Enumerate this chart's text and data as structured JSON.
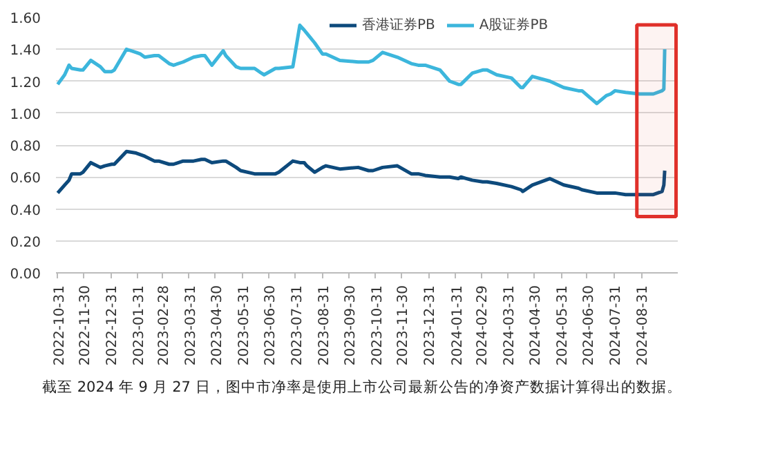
{
  "chart_data": {
    "type": "line",
    "x": [
      "2022-10-31",
      "2022-11-08",
      "2022-11-13",
      "2022-11-16",
      "2022-11-26",
      "2022-11-29",
      "2022-12-08",
      "2022-12-19",
      "2022-12-24",
      "2023-01-01",
      "2023-01-04",
      "2023-01-18",
      "2023-01-29",
      "2023-02-03",
      "2023-02-08",
      "2023-02-19",
      "2023-02-24",
      "2023-03-08",
      "2023-03-13",
      "2023-03-24",
      "2023-04-05",
      "2023-04-14",
      "2023-04-18",
      "2023-04-26",
      "2023-05-09",
      "2023-05-12",
      "2023-05-24",
      "2023-05-29",
      "2023-06-14",
      "2023-06-22",
      "2023-06-25",
      "2023-07-08",
      "2023-07-12",
      "2023-07-28",
      "2023-08-05",
      "2023-08-10",
      "2023-08-13",
      "2023-08-22",
      "2023-08-31",
      "2023-09-04",
      "2023-09-20",
      "2023-10-11",
      "2023-10-23",
      "2023-10-28",
      "2023-11-08",
      "2023-11-25",
      "2023-12-11",
      "2023-12-19",
      "2023-12-27",
      "2024-01-13",
      "2024-01-24",
      "2024-02-03",
      "2024-02-06",
      "2024-02-19",
      "2024-03-02",
      "2024-03-07",
      "2024-03-18",
      "2024-04-04",
      "2024-04-15",
      "2024-04-17",
      "2024-04-28",
      "2024-05-18",
      "2024-06-03",
      "2024-06-20",
      "2024-06-24",
      "2024-07-11",
      "2024-07-22",
      "2024-07-27",
      "2024-08-01",
      "2024-08-13",
      "2024-08-29",
      "2024-09-14",
      "2024-09-24",
      "2024-09-26",
      "2024-09-27"
    ],
    "series": [
      {
        "name": "香港证券PB",
        "color": "#0d4a7c",
        "values": [
          0.5,
          0.55,
          0.58,
          0.62,
          0.62,
          0.63,
          0.69,
          0.66,
          0.67,
          0.68,
          0.68,
          0.76,
          0.75,
          0.74,
          0.73,
          0.7,
          0.7,
          0.68,
          0.68,
          0.7,
          0.7,
          0.71,
          0.71,
          0.69,
          0.7,
          0.7,
          0.66,
          0.64,
          0.62,
          0.62,
          0.62,
          0.62,
          0.63,
          0.7,
          0.69,
          0.69,
          0.67,
          0.63,
          0.66,
          0.67,
          0.65,
          0.66,
          0.64,
          0.64,
          0.66,
          0.67,
          0.62,
          0.62,
          0.61,
          0.6,
          0.6,
          0.59,
          0.6,
          0.58,
          0.57,
          0.57,
          0.56,
          0.54,
          0.52,
          0.51,
          0.55,
          0.59,
          0.55,
          0.53,
          0.52,
          0.5,
          0.5,
          0.5,
          0.5,
          0.49,
          0.49,
          0.49,
          0.51,
          0.55,
          0.64
        ]
      },
      {
        "name": "A股证券PB",
        "color": "#3cb6dc",
        "values": [
          1.18,
          1.24,
          1.3,
          1.28,
          1.27,
          1.27,
          1.33,
          1.29,
          1.26,
          1.26,
          1.27,
          1.4,
          1.38,
          1.37,
          1.35,
          1.36,
          1.36,
          1.31,
          1.3,
          1.32,
          1.35,
          1.36,
          1.36,
          1.3,
          1.39,
          1.36,
          1.29,
          1.28,
          1.28,
          1.25,
          1.24,
          1.28,
          1.28,
          1.29,
          1.55,
          1.52,
          1.5,
          1.44,
          1.37,
          1.37,
          1.33,
          1.32,
          1.32,
          1.33,
          1.38,
          1.35,
          1.31,
          1.3,
          1.3,
          1.27,
          1.2,
          1.18,
          1.18,
          1.25,
          1.27,
          1.27,
          1.24,
          1.22,
          1.16,
          1.16,
          1.23,
          1.2,
          1.16,
          1.14,
          1.14,
          1.06,
          1.11,
          1.12,
          1.14,
          1.13,
          1.12,
          1.12,
          1.14,
          1.15,
          1.4
        ]
      }
    ],
    "xlim": [
      "2022-10-29",
      "2024-10-12"
    ],
    "xticks": [
      "2022-10-31",
      "2022-11-30",
      "2022-12-31",
      "2023-01-31",
      "2023-02-28",
      "2023-03-31",
      "2023-04-30",
      "2023-05-31",
      "2023-06-30",
      "2023-07-31",
      "2023-08-31",
      "2023-09-30",
      "2023-10-31",
      "2023-11-30",
      "2023-12-31",
      "2024-01-31",
      "2024-02-29",
      "2024-03-31",
      "2024-04-30",
      "2024-05-31",
      "2024-06-30",
      "2024-07-31",
      "2024-08-31"
    ],
    "ylim": [
      0,
      1.6
    ],
    "yticks": [
      {
        "value": 0,
        "label": "0.00"
      },
      {
        "value": 0.2,
        "label": "0.20"
      },
      {
        "value": 0.4,
        "label": "0.40"
      },
      {
        "value": 0.6,
        "label": "0.60"
      },
      {
        "value": 0.8,
        "label": "0.80"
      },
      {
        "value": 1.0,
        "label": "1.00"
      },
      {
        "value": 1.2,
        "label": "1.20"
      },
      {
        "value": 1.4,
        "label": "1.40"
      },
      {
        "value": 1.6,
        "label": "1.60"
      }
    ],
    "grid": "y",
    "legend": "top",
    "marker": "none",
    "line_style": "solid",
    "bands": [
      {
        "axis": "x",
        "from": "2024-08-26",
        "to": "2024-10-10",
        "color": "#e0302a"
      }
    ],
    "annotations": [
      "截至 2024 年 9 月 27 日，图中市净率是使用上市公司最新公告的净资产数据计算得出的数据。"
    ]
  }
}
